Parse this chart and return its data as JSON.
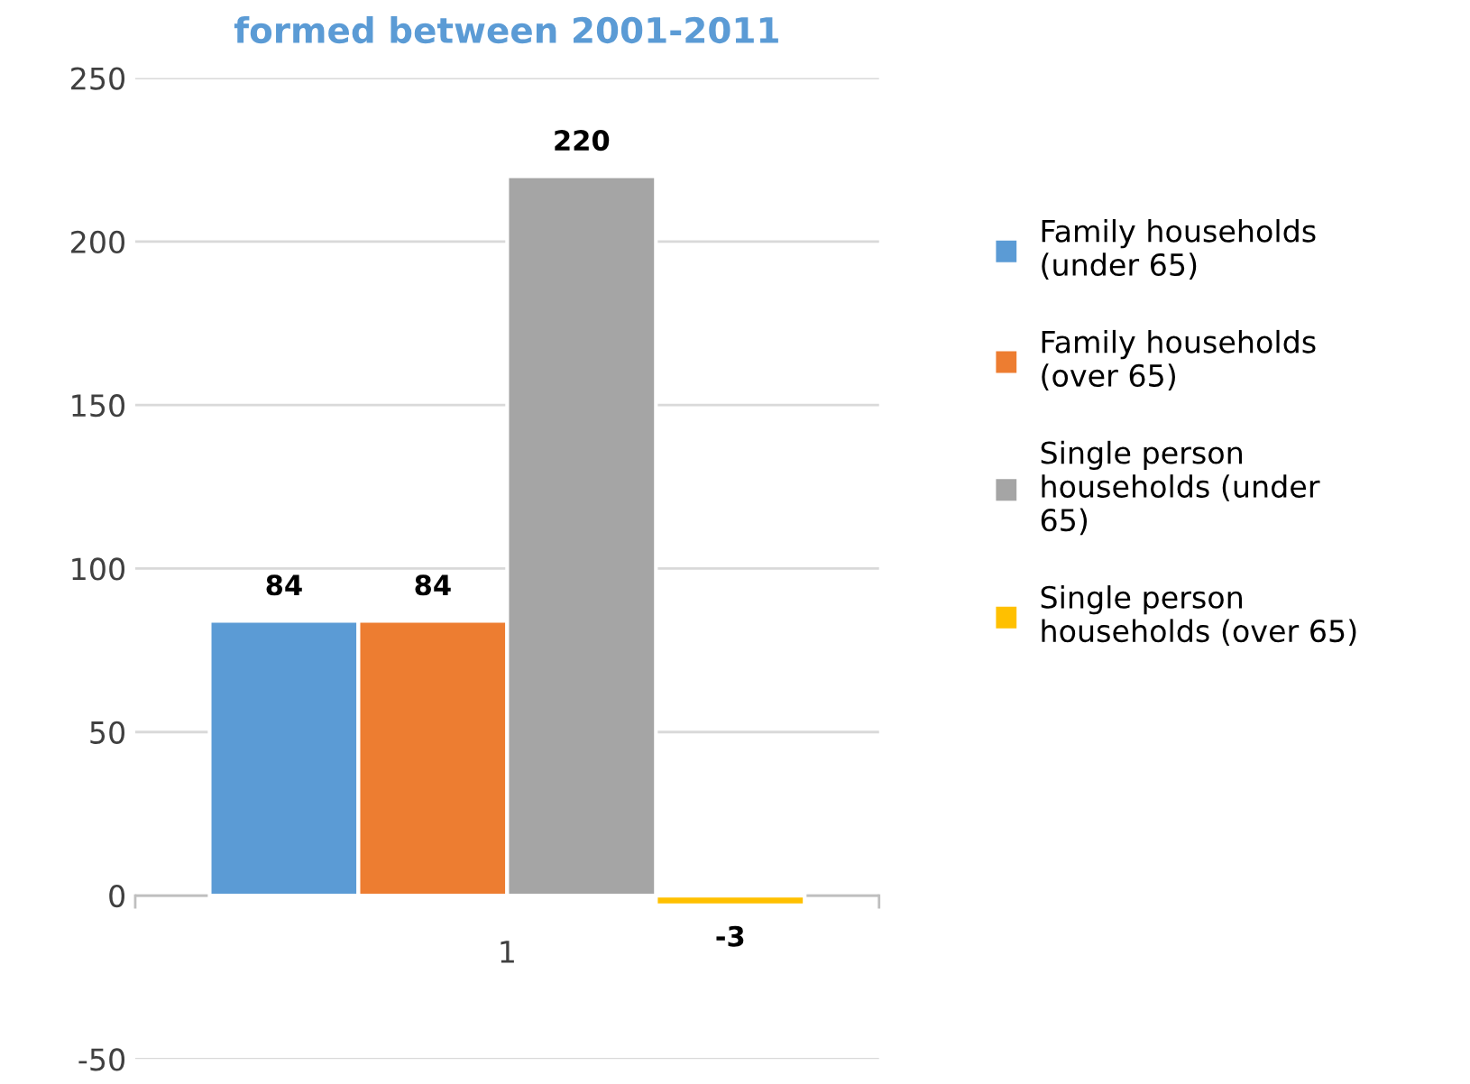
{
  "chart_data": {
    "type": "bar",
    "title": "formed between 2001-2011",
    "categories": [
      "1"
    ],
    "series": [
      {
        "name": "Family households\n(under 65)",
        "color": "#5b9bd5",
        "values": [
          84
        ]
      },
      {
        "name": "Family households\n(over 65)",
        "color": "#ed7d31",
        "values": [
          84
        ]
      },
      {
        "name": "Single person\nhouseholds (under\n65)",
        "color": "#a5a5a5",
        "values": [
          220
        ]
      },
      {
        "name": "Single person\nhouseholds (over 65)",
        "color": "#ffc000",
        "values": [
          -3
        ]
      }
    ],
    "ylim": [
      -50,
      250
    ],
    "yticks": [
      -50,
      0,
      50,
      100,
      150,
      200,
      250
    ],
    "grid": "y",
    "legend": "right",
    "data_labels": true
  }
}
